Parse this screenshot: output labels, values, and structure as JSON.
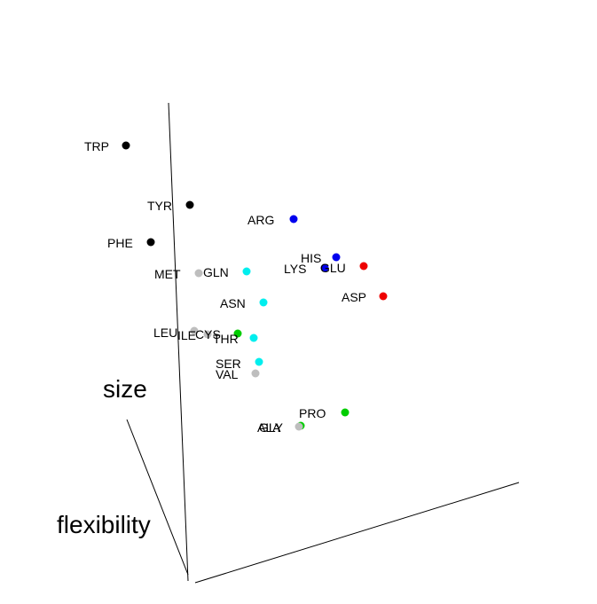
{
  "chart_data": {
    "type": "scatter",
    "axes": [
      {
        "label": "size"
      },
      {
        "label": "flexibility"
      },
      {
        "label": ""
      }
    ],
    "points": [
      {
        "label": "TRP",
        "color": "#000000"
      },
      {
        "label": "TYR",
        "color": "#000000"
      },
      {
        "label": "PHE",
        "color": "#000000"
      },
      {
        "label": "ARG",
        "color": "#0000ee"
      },
      {
        "label": "HIS",
        "color": "#0000ee"
      },
      {
        "label": "LYS",
        "color": "#0000ee"
      },
      {
        "label": "GLU",
        "color": "#ee0000"
      },
      {
        "label": "ASP",
        "color": "#ee0000"
      },
      {
        "label": "MET",
        "color": "#bebebe"
      },
      {
        "label": "GLN",
        "color": "#00eeee"
      },
      {
        "label": "ASN",
        "color": "#00eeee"
      },
      {
        "label": "LEU",
        "color": "#bebebe"
      },
      {
        "label": "ILE",
        "color": "#bebebe"
      },
      {
        "label": "CYS",
        "color": "#00cd00"
      },
      {
        "label": "THR",
        "color": "#00eeee"
      },
      {
        "label": "SER",
        "color": "#00eeee"
      },
      {
        "label": "VAL",
        "color": "#bebebe"
      },
      {
        "label": "PRO",
        "color": "#00cd00"
      },
      {
        "label": "GLY",
        "color": "#00cd00"
      },
      {
        "label": "ALA",
        "color": "#bebebe"
      }
    ]
  }
}
